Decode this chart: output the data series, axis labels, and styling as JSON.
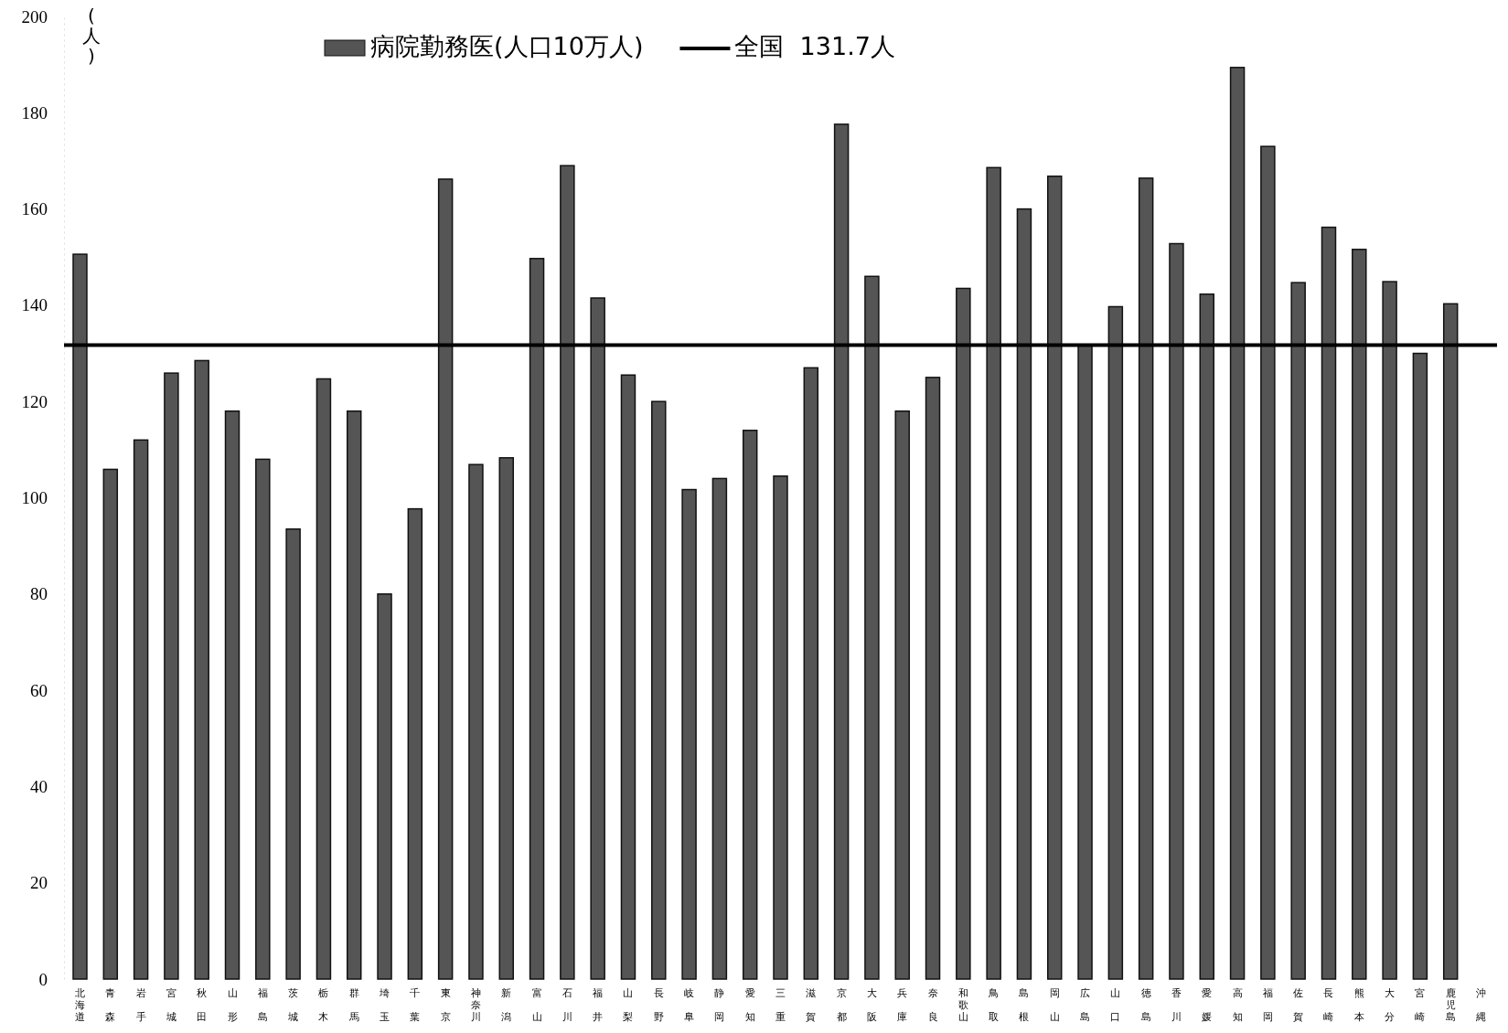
{
  "chart_data": {
    "type": "bar",
    "ylabel": "(人)",
    "categories": [
      "北海道",
      "青森",
      "岩手",
      "宮城",
      "秋田",
      "山形",
      "福島",
      "茨城",
      "栃木",
      "群馬",
      "埼玉",
      "千葉",
      "東京",
      "神奈川",
      "新潟",
      "富山",
      "石川",
      "福井",
      "山梨",
      "長野",
      "岐阜",
      "静岡",
      "愛知",
      "三重",
      "滋賀",
      "京都",
      "大阪",
      "兵庫",
      "奈良",
      "和歌山",
      "鳥取",
      "島根",
      "岡山",
      "広島",
      "山口",
      "徳島",
      "香川",
      "愛媛",
      "高知",
      "福岡",
      "佐賀",
      "長崎",
      "熊本",
      "大分",
      "宮崎",
      "鹿児島",
      "沖縄"
    ],
    "series": [
      {
        "name": "病院勤務医(人口10万人)",
        "color": "#555555",
        "values": [
          150.6,
          105.9,
          112,
          125.9,
          128.5,
          118,
          108,
          93.5,
          124.7,
          118,
          80,
          97.7,
          166.2,
          106.9,
          108.3,
          149.7,
          169,
          141.5,
          125.5,
          120,
          101.7,
          104,
          114,
          104.5,
          127,
          177.6,
          146,
          118,
          125,
          143.5,
          168.6,
          160,
          166.8,
          131.7,
          139.7,
          166.4,
          152.8,
          142.3,
          189.4,
          173,
          144.7,
          156.2,
          151.6,
          144.9,
          130,
          140.3,
          null
        ]
      }
    ],
    "ylim": [
      0,
      200
    ],
    "yticks": [
      0,
      20,
      40,
      60,
      80,
      100,
      120,
      140,
      160,
      180,
      200
    ],
    "ref_lines": [
      {
        "axis": "y",
        "value": 131.7,
        "label": "全国  131.7人",
        "color": "#000000"
      }
    ],
    "legend": "top",
    "grid": false
  }
}
